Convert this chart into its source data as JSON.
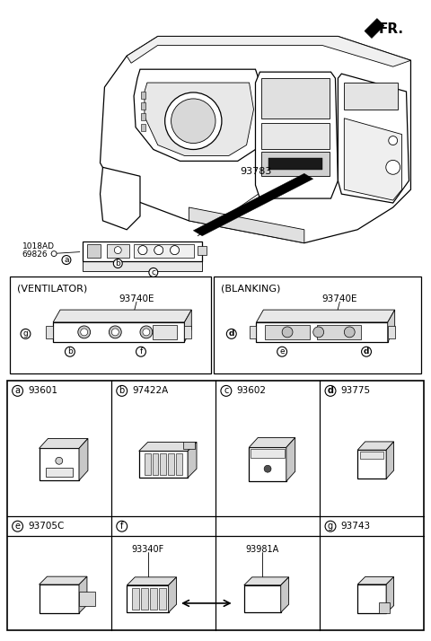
{
  "bg_color": "#ffffff",
  "text_color": "#000000",
  "fr_label": "FR.",
  "part_93783": "93783",
  "part_screw_top": "1018AD",
  "part_screw_bot": "69826",
  "ventilator_label": "(VENTILATOR)",
  "blanking_label": "(BLANKING)",
  "vent_part": "93740E",
  "blank_part": "93740E",
  "parts_row0": [
    {
      "letter": "a",
      "code": "93601"
    },
    {
      "letter": "b",
      "code": "97422A"
    },
    {
      "letter": "c",
      "code": "93602"
    },
    {
      "letter": "d",
      "code": "93775"
    }
  ],
  "parts_row1": [
    {
      "letter": "e",
      "code": "93705C"
    },
    {
      "letter": "f",
      "code": ""
    },
    {
      "letter": "g",
      "code": "93743"
    }
  ],
  "f_sub_parts": [
    "93340F",
    "93981A"
  ],
  "lw_thin": 0.6,
  "lw_med": 0.9,
  "lw_thick": 1.2
}
